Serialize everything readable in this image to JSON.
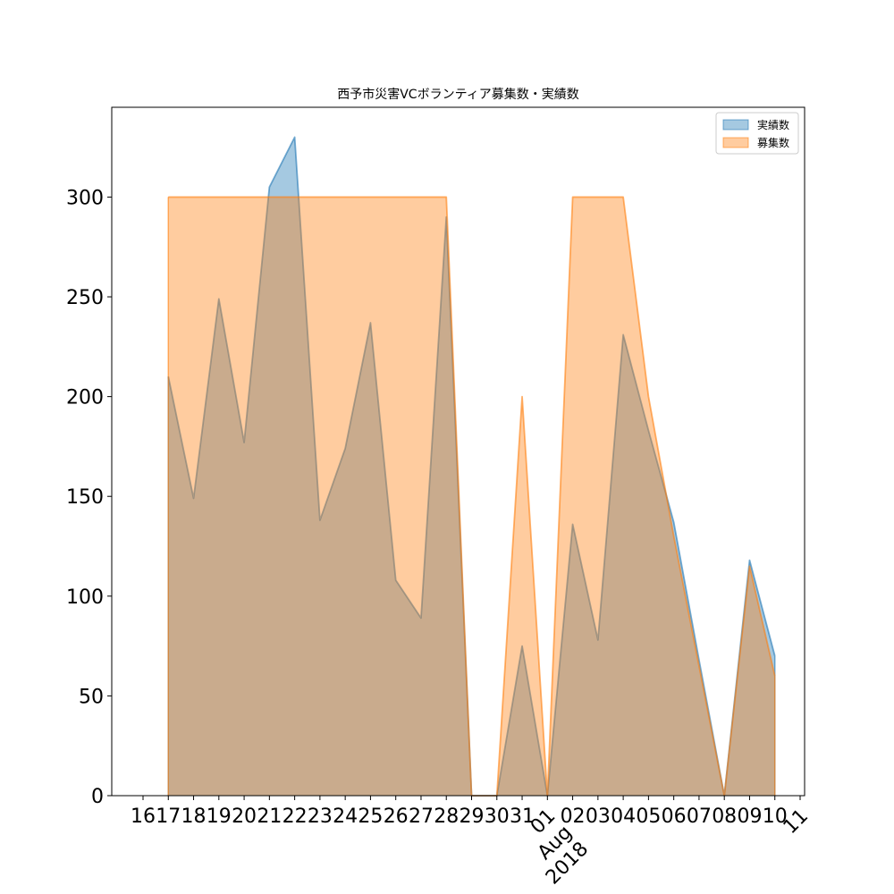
{
  "chart_data": {
    "type": "area",
    "title": "西予市災害VCボランティア募集数・実績数",
    "xlabel": "",
    "ylabel": "",
    "x": [
      "2018-07-16",
      "2018-07-17",
      "2018-07-18",
      "2018-07-19",
      "2018-07-20",
      "2018-07-21",
      "2018-07-22",
      "2018-07-23",
      "2018-07-24",
      "2018-07-25",
      "2018-07-26",
      "2018-07-27",
      "2018-07-28",
      "2018-07-29",
      "2018-07-30",
      "2018-07-31",
      "2018-08-01",
      "2018-08-02",
      "2018-08-03",
      "2018-08-04",
      "2018-08-05",
      "2018-08-06",
      "2018-08-07",
      "2018-08-08",
      "2018-08-09",
      "2018-08-10",
      "2018-08-11"
    ],
    "series": [
      {
        "name": "実績数",
        "color": "#1f77b4",
        "x": [
          "2018-07-17",
          "2018-07-18",
          "2018-07-19",
          "2018-07-20",
          "2018-07-21",
          "2018-07-22",
          "2018-07-23",
          "2018-07-24",
          "2018-07-25",
          "2018-07-26",
          "2018-07-27",
          "2018-07-28",
          "2018-07-29",
          "2018-07-30",
          "2018-07-31",
          "2018-08-01",
          "2018-08-02",
          "2018-08-03",
          "2018-08-04",
          "2018-08-05",
          "2018-08-06",
          "2018-08-07",
          "2018-08-08",
          "2018-08-09",
          "2018-08-10"
        ],
        "values": [
          210,
          149,
          249,
          177,
          305,
          330,
          138,
          174,
          237,
          108,
          89,
          290,
          0,
          0,
          75,
          0,
          136,
          78,
          231,
          183,
          137,
          68,
          0,
          118,
          70
        ]
      },
      {
        "name": "募集数",
        "color": "#ff7f0e",
        "x": [
          "2018-07-17",
          "2018-07-18",
          "2018-07-19",
          "2018-07-20",
          "2018-07-21",
          "2018-07-22",
          "2018-07-23",
          "2018-07-24",
          "2018-07-25",
          "2018-07-26",
          "2018-07-27",
          "2018-07-28",
          "2018-07-29",
          "2018-07-30",
          "2018-07-31",
          "2018-08-01",
          "2018-08-02",
          "2018-08-03",
          "2018-08-04",
          "2018-08-05",
          "2018-08-06",
          "2018-08-07",
          "2018-08-08",
          "2018-08-09",
          "2018-08-10"
        ],
        "values": [
          300,
          300,
          300,
          300,
          300,
          300,
          300,
          300,
          300,
          300,
          300,
          300,
          0,
          0,
          200,
          0,
          300,
          300,
          300,
          200,
          130,
          65,
          0,
          115,
          60
        ]
      }
    ],
    "ylim": [
      0,
      345
    ],
    "yticks": [
      0,
      50,
      100,
      150,
      200,
      250,
      300
    ],
    "ytick_labels": [
      "0",
      "50",
      "100",
      "150",
      "200",
      "250",
      "300"
    ],
    "xticks": [
      {
        "date": "2018-07-16",
        "label": "16"
      },
      {
        "date": "2018-07-17",
        "label": "17"
      },
      {
        "date": "2018-07-18",
        "label": "18"
      },
      {
        "date": "2018-07-19",
        "label": "19"
      },
      {
        "date": "2018-07-20",
        "label": "20"
      },
      {
        "date": "2018-07-21",
        "label": "21"
      },
      {
        "date": "2018-07-22",
        "label": "22"
      },
      {
        "date": "2018-07-23",
        "label": "23"
      },
      {
        "date": "2018-07-24",
        "label": "24"
      },
      {
        "date": "2018-07-25",
        "label": "25"
      },
      {
        "date": "2018-07-26",
        "label": "26"
      },
      {
        "date": "2018-07-27",
        "label": "27"
      },
      {
        "date": "2018-07-28",
        "label": "28"
      },
      {
        "date": "2018-07-29",
        "label": "29"
      },
      {
        "date": "2018-07-30",
        "label": "30"
      },
      {
        "date": "2018-07-31",
        "label": "31"
      },
      {
        "date": "2018-08-02",
        "label": "02"
      },
      {
        "date": "2018-08-03",
        "label": "03"
      },
      {
        "date": "2018-08-04",
        "label": "04"
      },
      {
        "date": "2018-08-05",
        "label": "05"
      },
      {
        "date": "2018-08-06",
        "label": "06"
      },
      {
        "date": "2018-08-07",
        "label": "07"
      },
      {
        "date": "2018-08-08",
        "label": "08"
      },
      {
        "date": "2018-08-09",
        "label": "09"
      },
      {
        "date": "2018-08-10",
        "label": "10"
      }
    ],
    "xticks_rotated": [
      {
        "date": "2018-08-01",
        "lines": [
          "01",
          "Aug",
          "2018"
        ]
      },
      {
        "date": "2018-08-11",
        "lines": [
          "11"
        ]
      }
    ],
    "xlim": [
      "2018-07-16",
      "2018-08-11"
    ],
    "grid": false,
    "legend": "top-right",
    "alpha": 0.4
  }
}
